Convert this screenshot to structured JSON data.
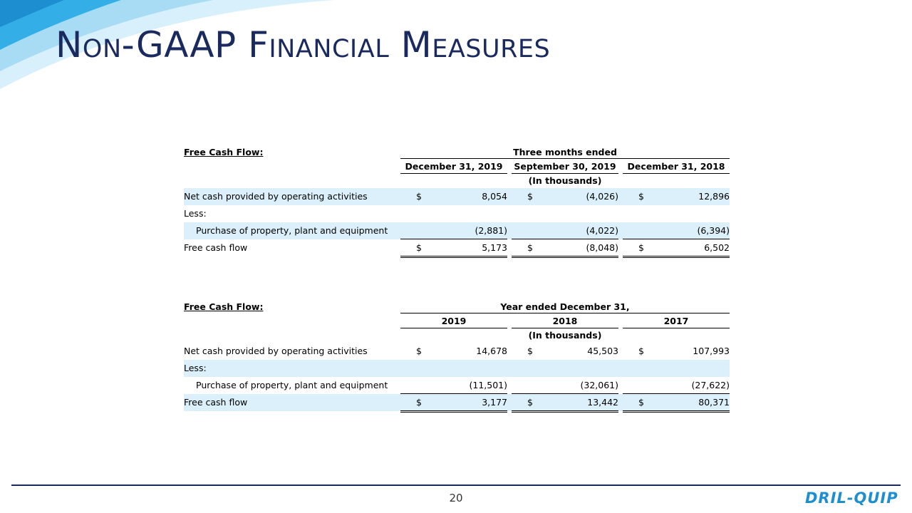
{
  "header": {
    "title": "Non-GAAP Financial Measures"
  },
  "tables": [
    {
      "label": "Free Cash Flow:",
      "period": "Three months ended",
      "columns": [
        "December 31, 2019",
        "September 30, 2019",
        "December 31, 2018"
      ],
      "units": "(In thousands)",
      "rows": [
        {
          "label": "Net cash provided by operating activities",
          "cells": [
            {
              "sign": "$",
              "value": "8,054"
            },
            {
              "sign": "$",
              "value": "(4,026)"
            },
            {
              "sign": "$",
              "value": "12,896"
            }
          ]
        },
        {
          "label": "Less:"
        },
        {
          "label": "Purchase of property, plant and equipment",
          "cells": [
            {
              "value": "(2,881)"
            },
            {
              "value": "(4,022)"
            },
            {
              "value": "(6,394)"
            }
          ]
        },
        {
          "label": "Free cash flow",
          "cells": [
            {
              "sign": "$",
              "value": "5,173"
            },
            {
              "sign": "$",
              "value": "(8,048)"
            },
            {
              "sign": "$",
              "value": "6,502"
            }
          ]
        }
      ]
    },
    {
      "label": "Free Cash Flow:",
      "period": "Year ended December 31,",
      "columns": [
        "2019",
        "2018",
        "2017"
      ],
      "units": "(In thousands)",
      "rows": [
        {
          "label": "Net cash provided by operating activities",
          "cells": [
            {
              "sign": "$",
              "value": "14,678"
            },
            {
              "sign": "$",
              "value": "45,503"
            },
            {
              "sign": "$",
              "value": "107,993"
            }
          ]
        },
        {
          "label": "Less:"
        },
        {
          "label": "Purchase of property, plant and equipment",
          "cells": [
            {
              "value": "(11,501)"
            },
            {
              "value": "(32,061)"
            },
            {
              "value": "(27,622)"
            }
          ]
        },
        {
          "label": "Free cash flow",
          "cells": [
            {
              "sign": "$",
              "value": "3,177"
            },
            {
              "sign": "$",
              "value": "13,442"
            },
            {
              "sign": "$",
              "value": "80,371"
            }
          ]
        }
      ]
    }
  ],
  "footer": {
    "page": "20",
    "logo": "DRIL-QUIP"
  }
}
